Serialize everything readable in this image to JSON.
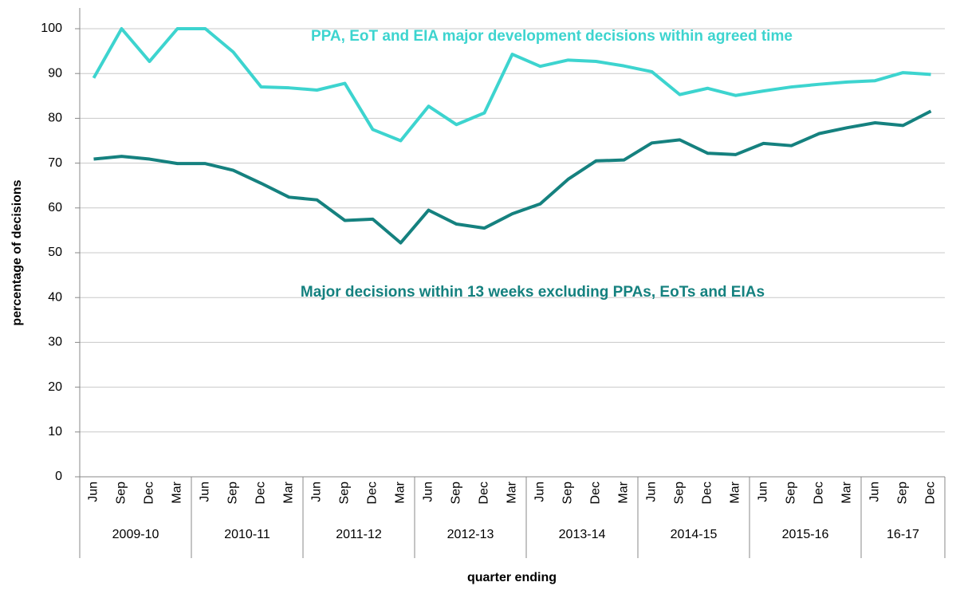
{
  "chart_data": {
    "type": "line",
    "x_label": "quarter ending",
    "y_label": "percentage of decisions",
    "category_groups": [
      {
        "label": "2009-10",
        "categories": [
          "Jun",
          "Sep",
          "Dec",
          "Mar"
        ]
      },
      {
        "label": "2010-11",
        "categories": [
          "Jun",
          "Sep",
          "Dec",
          "Mar"
        ]
      },
      {
        "label": "2011-12",
        "categories": [
          "Jun",
          "Sep",
          "Dec",
          "Mar"
        ]
      },
      {
        "label": "2012-13",
        "categories": [
          "Jun",
          "Sep",
          "Dec",
          "Mar"
        ]
      },
      {
        "label": "2013-14",
        "categories": [
          "Jun",
          "Sep",
          "Dec",
          "Mar"
        ]
      },
      {
        "label": "2014-15",
        "categories": [
          "Jun",
          "Sep",
          "Dec",
          "Mar"
        ]
      },
      {
        "label": "2015-16",
        "categories": [
          "Jun",
          "Sep",
          "Dec",
          "Mar"
        ]
      },
      {
        "label": "16-17",
        "categories": [
          "Jun",
          "Sep",
          "Dec"
        ]
      }
    ],
    "series": [
      {
        "name": "PPA, EoT and EIA major development decisions within agreed time",
        "color": "#3dd4cf",
        "values": [
          89,
          100,
          92.7,
          100,
          100,
          94.8,
          87,
          86.8,
          86.3,
          87.8,
          77.5,
          75,
          82.7,
          78.6,
          81.2,
          94.3,
          91.6,
          93,
          92.7,
          91.7,
          90.4,
          85.3,
          86.7,
          85.1,
          86.1,
          87,
          87.6,
          88.1,
          88.4,
          90.2,
          89.8
        ]
      },
      {
        "name": "Major decisions within 13 weeks excluding PPAs, EoTs and EIAs",
        "color": "#15817f",
        "values": [
          70.9,
          71.5,
          70.9,
          69.9,
          69.9,
          68.4,
          65.5,
          62.4,
          61.8,
          57.2,
          57.5,
          52.2,
          59.5,
          56.4,
          55.5,
          58.7,
          60.9,
          66.4,
          70.5,
          70.7,
          74.5,
          75.2,
          72.2,
          71.9,
          74.4,
          73.9,
          76.6,
          77.9,
          79,
          78.4,
          81.6
        ]
      }
    ],
    "ylim": [
      0,
      100
    ],
    "yticks": [
      0,
      10,
      20,
      30,
      40,
      50,
      60,
      70,
      80,
      90,
      100
    ],
    "grid": true
  }
}
